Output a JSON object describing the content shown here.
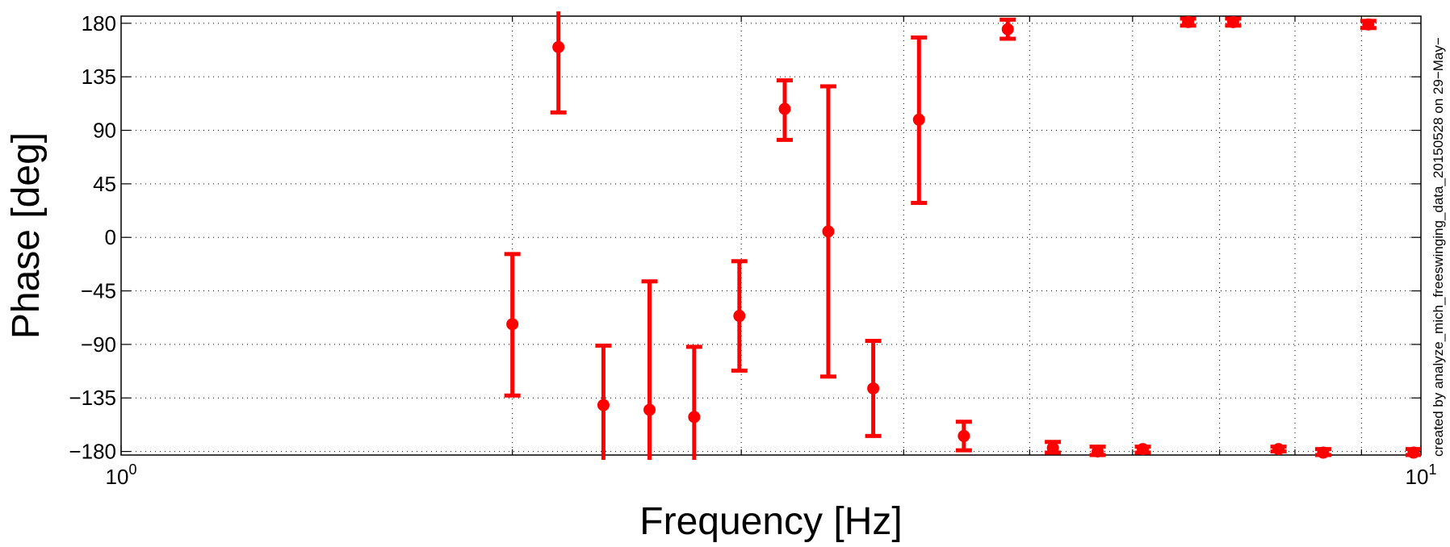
{
  "chart_data": {
    "type": "scatter",
    "title": "",
    "xlabel": "Frequency [Hz]",
    "ylabel": "Phase [deg]",
    "xscale": "log",
    "xlim": [
      1,
      10
    ],
    "ylim": [
      -183,
      186
    ],
    "grid": true,
    "x_ticks": [
      {
        "value": 1,
        "base": "10",
        "exp": "0"
      },
      {
        "value": 10,
        "base": "10",
        "exp": "1"
      }
    ],
    "y_ticks": [
      180,
      135,
      90,
      45,
      0,
      -45,
      -90,
      -135,
      -180
    ],
    "y_tick_labels": [
      "180",
      "135",
      "90",
      "45",
      "0",
      "−45",
      "−90",
      "−135",
      "−180"
    ],
    "marker_color": "#ff0000",
    "side_annotation": "created by analyze_mich_freeswinging_data_20150528 on 29−May−",
    "series": [
      {
        "points": [
          {
            "x": 2.0,
            "y": -73,
            "low": -133,
            "high": -14
          },
          {
            "x": 2.17,
            "y": 160,
            "low": 105,
            "high": 190
          },
          {
            "x": 2.35,
            "y": -141,
            "low": -190,
            "high": -91
          },
          {
            "x": 2.55,
            "y": -145,
            "low": -190,
            "high": -37
          },
          {
            "x": 2.76,
            "y": -151,
            "low": -190,
            "high": -92
          },
          {
            "x": 2.99,
            "y": -66,
            "low": -112,
            "high": -20
          },
          {
            "x": 3.24,
            "y": 108,
            "low": 82,
            "high": 132
          },
          {
            "x": 3.5,
            "y": 5,
            "low": -117,
            "high": 127
          },
          {
            "x": 3.79,
            "y": -127,
            "low": -167,
            "high": -87
          },
          {
            "x": 4.11,
            "y": 99,
            "low": 29,
            "high": 168
          },
          {
            "x": 4.45,
            "y": -167,
            "low": -179,
            "high": -155
          },
          {
            "x": 4.81,
            "y": 175,
            "low": 167,
            "high": 183
          },
          {
            "x": 5.21,
            "y": -177,
            "low": -181,
            "high": -172
          },
          {
            "x": 5.64,
            "y": -180,
            "low": -183,
            "high": -176
          },
          {
            "x": 6.11,
            "y": -178,
            "low": -181,
            "high": -176
          },
          {
            "x": 6.62,
            "y": 181,
            "low": 178,
            "high": 184
          },
          {
            "x": 7.17,
            "y": 181,
            "low": 178,
            "high": 184
          },
          {
            "x": 7.77,
            "y": -178,
            "low": -180,
            "high": -176
          },
          {
            "x": 8.41,
            "y": -181,
            "low": -183,
            "high": -178
          },
          {
            "x": 9.11,
            "y": 179,
            "low": 176,
            "high": 182
          },
          {
            "x": 9.87,
            "y": -181,
            "low": -183,
            "high": -178
          }
        ]
      }
    ]
  }
}
